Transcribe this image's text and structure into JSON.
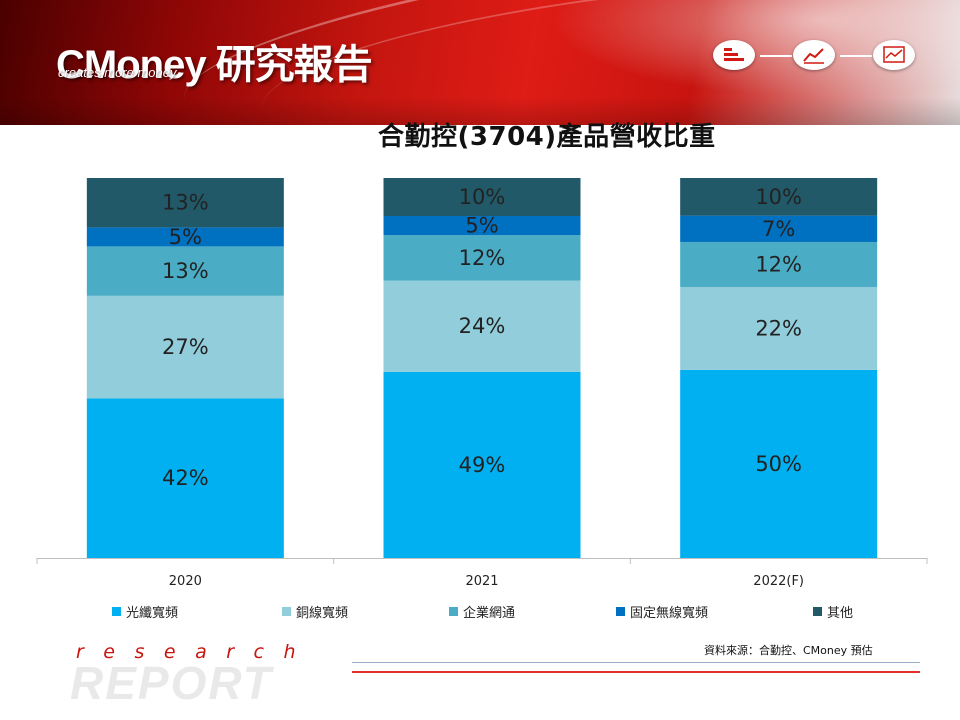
{
  "header": {
    "logo_text": "CMoney 研究報告",
    "logo_tagline": "creates more money",
    "icons": [
      "bar-list-icon",
      "line-chart-icon",
      "trend-chart-icon"
    ]
  },
  "chart_data": {
    "type": "bar",
    "stacked": true,
    "title": "合勤控(3704)產品營收比重",
    "categories": [
      "2020",
      "2021",
      "2022(F)"
    ],
    "series": [
      {
        "name": "光纖寬頻",
        "color": "#00b0f0",
        "values": [
          42,
          49,
          50
        ],
        "labels": [
          "42%",
          "49%",
          "50%"
        ]
      },
      {
        "name": "銅線寬頻",
        "color": "#92cddc",
        "values": [
          27,
          24,
          22
        ],
        "labels": [
          "27%",
          "24%",
          "22%"
        ]
      },
      {
        "name": "企業網通",
        "color": "#4bacc6",
        "values": [
          13,
          12,
          12
        ],
        "labels": [
          "13%",
          "12%",
          "12%"
        ]
      },
      {
        "name": "固定無線寬頻",
        "color": "#0070c0",
        "values": [
          5,
          5,
          7
        ],
        "labels": [
          "5%",
          "5%",
          "7%"
        ]
      },
      {
        "name": "其他",
        "color": "#215968",
        "values": [
          13,
          10,
          10
        ],
        "labels": [
          "13%",
          "10%",
          "10%"
        ]
      }
    ],
    "ylim": [
      0,
      100
    ],
    "grid": false,
    "legend_position": "bottom",
    "text_color": "#222222"
  },
  "footer": {
    "source": "資料來源：合勤控、CMoney  預估",
    "research": "research",
    "report": "REPORT",
    "accent": "#c8140f"
  }
}
